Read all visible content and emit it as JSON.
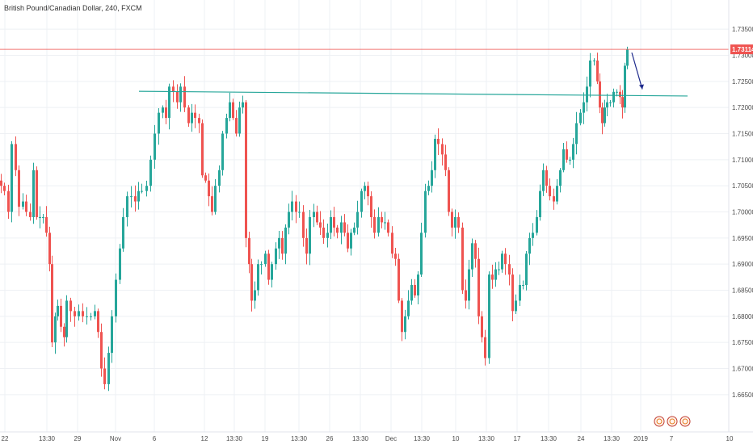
{
  "chart_data": {
    "type": "candlestick",
    "title": "British Pound/Canadian Dollar, 240, FXCM",
    "yrange": [
      1.6625,
      1.7375
    ],
    "y_ticks": [
      "1.73500",
      "1.73000",
      "1.72500",
      "1.72000",
      "1.71500",
      "1.71000",
      "1.70500",
      "1.70000",
      "1.69500",
      "1.69000",
      "1.68500",
      "1.68000",
      "1.67500",
      "1.67000",
      "1.66500"
    ],
    "x_ticks": [
      "22",
      "13:30",
      "29",
      "Nov",
      "6",
      "12",
      "13:30",
      "19",
      "13:30",
      "26",
      "13:30",
      "Dec",
      "13:30",
      "10",
      "13:30",
      "17",
      "13:30",
      "24",
      "13:30",
      "2019",
      "7",
      "10"
    ],
    "current_price": "1.73114",
    "current_price_value": 1.73114,
    "grid": true,
    "colors": {
      "up": "#26a69a",
      "down": "#ef5350",
      "trendline": "#26a69a",
      "arrow": "#1e2a8c",
      "price_line": "#ef5350"
    },
    "trendline": {
      "from": 1.7231,
      "to": 1.7222
    },
    "arrow": {
      "from": 1.7305,
      "to": 1.7235
    },
    "events": [
      "event-icon",
      "event-icon",
      "flag-event-icon"
    ],
    "candles": []
  }
}
